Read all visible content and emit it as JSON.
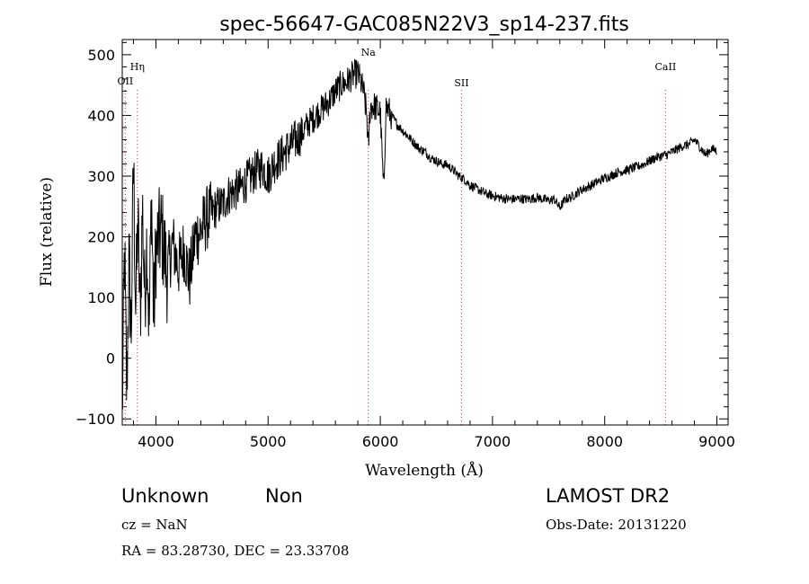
{
  "chart_data": {
    "type": "line",
    "title": "spec-56647-GAC085N22V3_sp14-237.fits",
    "xlabel": "Wavelength (Å)",
    "ylabel": "Flux (relative)",
    "xlim": [
      3700,
      9100
    ],
    "ylim": [
      -110,
      525
    ],
    "xticks": [
      4000,
      5000,
      6000,
      7000,
      8000,
      9000
    ],
    "yticks": [
      -100,
      0,
      100,
      200,
      300,
      400,
      500
    ],
    "grid": false,
    "series": [
      {
        "x": [
          3700,
          3720,
          3740,
          3760,
          3780,
          3800,
          3820,
          3840,
          3860,
          3880,
          3900,
          3920,
          3940,
          3960,
          3980,
          4000,
          4050,
          4100,
          4150,
          4200,
          4250,
          4300,
          4350,
          4400,
          4450,
          4500,
          4550,
          4600,
          4650,
          4700,
          4750,
          4800,
          4850,
          4900,
          4950,
          5000,
          5050,
          5100,
          5150,
          5200,
          5250,
          5300,
          5350,
          5400,
          5450,
          5500,
          5550,
          5600,
          5650,
          5700,
          5750,
          5800,
          5850,
          5880,
          5893,
          5910,
          5950,
          6000,
          6030,
          6050,
          6100,
          6150,
          6200,
          6250,
          6300,
          6350,
          6400,
          6450,
          6500,
          6550,
          6600,
          6650,
          6700,
          6750,
          6800,
          6850,
          6900,
          6950,
          7000,
          7050,
          7100,
          7150,
          7200,
          7250,
          7300,
          7350,
          7400,
          7450,
          7500,
          7550,
          7600,
          7650,
          7700,
          7750,
          7800,
          7850,
          7900,
          7950,
          8000,
          8050,
          8100,
          8150,
          8200,
          8250,
          8300,
          8350,
          8400,
          8450,
          8500,
          8550,
          8600,
          8650,
          8700,
          8750,
          8800,
          8850,
          8900,
          8950,
          9000
        ],
        "values": [
          -100,
          180,
          -60,
          160,
          40,
          330,
          80,
          230,
          60,
          250,
          100,
          200,
          40,
          280,
          60,
          180,
          210,
          140,
          190,
          150,
          180,
          130,
          200,
          210,
          230,
          240,
          250,
          255,
          270,
          275,
          280,
          290,
          300,
          310,
          315,
          300,
          320,
          330,
          340,
          350,
          360,
          370,
          385,
          395,
          405,
          415,
          425,
          440,
          450,
          455,
          465,
          470,
          440,
          400,
          340,
          415,
          415,
          405,
          270,
          415,
          400,
          385,
          375,
          365,
          355,
          345,
          340,
          330,
          325,
          320,
          318,
          310,
          300,
          295,
          285,
          280,
          275,
          270,
          268,
          265,
          263,
          262,
          262,
          263,
          262,
          263,
          265,
          262,
          260,
          262,
          248,
          262,
          265,
          272,
          278,
          282,
          287,
          292,
          297,
          300,
          305,
          308,
          310,
          313,
          316,
          320,
          325,
          330,
          333,
          335,
          340,
          345,
          350,
          352,
          360,
          348,
          335,
          345,
          342
        ]
      }
    ],
    "line_markers": [
      {
        "label": "OII",
        "x": 3727
      },
      {
        "label": "Hη",
        "x": 3835
      },
      {
        "label": "Na",
        "x": 5893
      },
      {
        "label": "SII",
        "x": 6724
      },
      {
        "label": "CaII",
        "x": 8542
      }
    ],
    "colors": {
      "spectrum": "#000000",
      "marker": "#cc3333",
      "axes": "#000000"
    }
  },
  "info": {
    "class": "Unknown",
    "subclass": "Non",
    "cz": "cz = NaN",
    "coords": "RA =  83.28730, DEC =  23.33708",
    "survey": "LAMOST DR2",
    "obs_date": "Obs-Date: 20131220"
  }
}
